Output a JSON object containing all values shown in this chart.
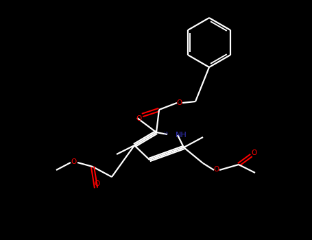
{
  "bg_color": "#000000",
  "bond_color": "#ffffff",
  "oxygen_color": "#ff0000",
  "nitrogen_color": "#3333bb",
  "line_width": 1.6,
  "figsize": [
    4.55,
    3.5
  ],
  "dpi": 100,
  "xlim": [
    0,
    9.1
  ],
  "ylim": [
    0,
    7.0
  ]
}
